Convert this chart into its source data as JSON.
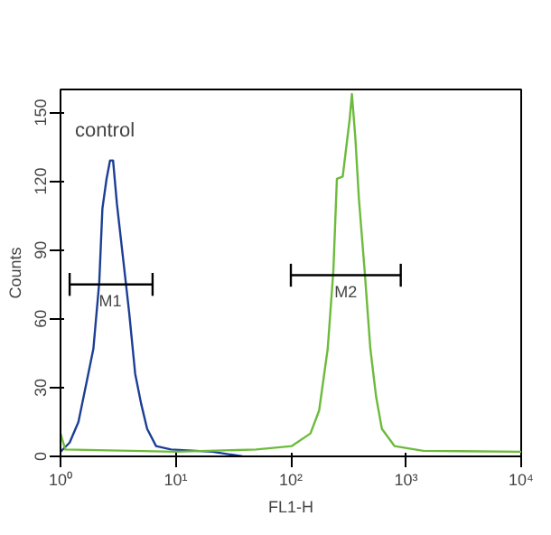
{
  "chart_data": {
    "type": "line",
    "xlabel": "FL1-H",
    "ylabel": "Counts",
    "log": "x",
    "xlim": [
      1,
      10000
    ],
    "xticks": [
      {
        "value": 1,
        "label": "10⁰"
      },
      {
        "value": 10,
        "label": "10¹"
      },
      {
        "value": 100,
        "label": "10²"
      },
      {
        "value": 1000,
        "label": "10³"
      },
      {
        "value": 10000,
        "label": "10⁴"
      }
    ],
    "ylim": [
      0,
      160
    ],
    "yticks": [
      0,
      30,
      60,
      90,
      120,
      150
    ],
    "grid": false,
    "marker": "none",
    "line_style": "solid",
    "series": [
      {
        "color": "#1c3f94",
        "x": [
          1,
          1.2,
          1.43,
          1.71,
          1.93,
          2.17,
          2.31,
          2.51,
          2.69,
          2.86,
          3.09,
          3.5,
          3.94,
          4.45,
          5.01,
          5.65,
          6.76,
          9.12,
          20.9,
          38
        ],
        "values": [
          2,
          6,
          15,
          34,
          47,
          76,
          108,
          121,
          129,
          129,
          110,
          86,
          63,
          36,
          23,
          12,
          4.5,
          3,
          2,
          0
        ]
      },
      {
        "color": "#6cbb3c",
        "x": [
          1,
          1.1,
          10,
          50,
          102,
          148,
          176,
          209,
          234,
          251,
          282,
          324,
          339,
          363,
          389,
          437,
          490,
          550,
          617,
          794,
          1413,
          10000
        ],
        "values": [
          10,
          3,
          2,
          3,
          4.5,
          10,
          20,
          47,
          81,
          121,
          122,
          147,
          158,
          139,
          113,
          81,
          47,
          26,
          12,
          4.5,
          2.4,
          2
        ]
      },
      {
        "color": "#000000",
        "x": [
          1.2,
          6.3
        ],
        "values": [
          75,
          75
        ],
        "errors": [
          5,
          5
        ]
      },
      {
        "color": "#000000",
        "x": [
          100,
          900
        ],
        "values": [
          79,
          79
        ],
        "errors": [
          5,
          5
        ]
      }
    ],
    "annotations": [
      "control",
      {
        "text": "M1",
        "x": 2.7,
        "y": 75
      },
      {
        "text": "M2",
        "x": 300,
        "y": 79
      }
    ]
  }
}
